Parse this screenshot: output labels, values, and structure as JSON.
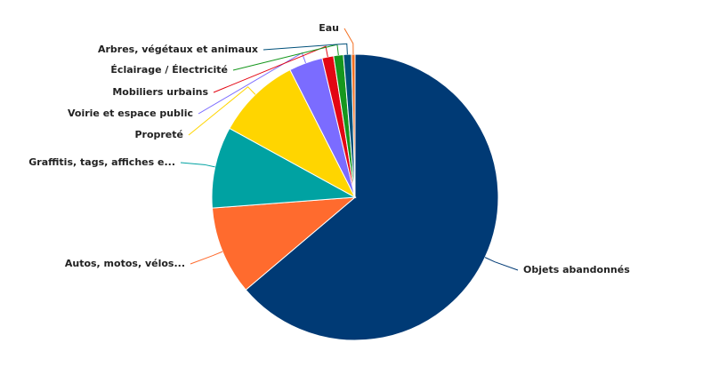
{
  "chart_data": {
    "type": "pie",
    "categories": [
      "Objets abandonnés",
      "Autos, motos, vélos...",
      "Graffitis, tags, affiches e...",
      "Propreté",
      "Voirie et espace public",
      "Mobiliers urbains",
      "Éclairage / Électricité",
      "Arbres, végétaux et animaux",
      "Eau"
    ],
    "values": [
      63.8,
      10.0,
      9.2,
      9.5,
      3.8,
      1.3,
      1.1,
      0.9,
      0.4
    ],
    "colors": [
      "#003a75",
      "#ff6b2e",
      "#00a2a2",
      "#ffd500",
      "#7b6cff",
      "#e30613",
      "#16971d",
      "#00507a",
      "#f36f21"
    ]
  }
}
